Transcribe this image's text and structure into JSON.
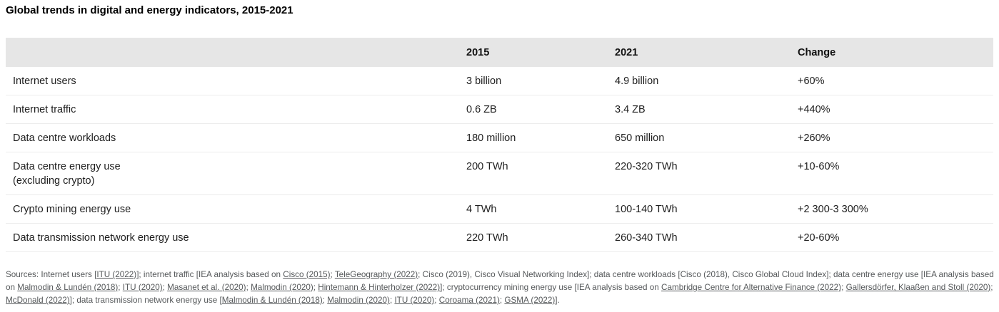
{
  "title": "Global trends in digital and energy indicators, 2015-2021",
  "colors": {
    "header_bg": "#e6e6e6",
    "row_border": "#ececec",
    "text": "#1e1e1e",
    "footnote": "#55585a"
  },
  "table": {
    "columns": [
      "",
      "2015",
      "2021",
      "Change"
    ],
    "rows": [
      {
        "label": "Internet users",
        "v2015": "3 billion",
        "v2021": "4.9 billion",
        "change": "+60%"
      },
      {
        "label": "Internet traffic",
        "v2015": "0.6 ZB",
        "v2021": "3.4 ZB",
        "change": "+440%"
      },
      {
        "label": "Data centre workloads",
        "v2015": "180 million",
        "v2021": "650 million",
        "change": "+260%"
      },
      {
        "label": "Data centre energy use\n(excluding crypto)",
        "v2015": "200 TWh",
        "v2021": "220-320 TWh",
        "change": "+10-60%"
      },
      {
        "label": "Crypto mining energy use",
        "v2015": "4 TWh",
        "v2021": "100-140 TWh",
        "change": "+2 300-3 300%"
      },
      {
        "label": "Data transmission network energy use",
        "v2015": "220 TWh",
        "v2021": "260-340 TWh",
        "change": "+20-60%"
      }
    ]
  },
  "chart_data": {
    "type": "table",
    "title": "Global trends in digital and energy indicators, 2015-2021",
    "columns": [
      "",
      "2015",
      "2021",
      "Change"
    ],
    "rows": [
      [
        "Internet users",
        "3 billion",
        "4.9 billion",
        "+60%"
      ],
      [
        "Internet traffic",
        "0.6 ZB",
        "3.4 ZB",
        "+440%"
      ],
      [
        "Data centre workloads",
        "180 million",
        "650 million",
        "+260%"
      ],
      [
        "Data centre energy use (excluding crypto)",
        "200 TWh",
        "220-320 TWh",
        "+10-60%"
      ],
      [
        "Crypto mining energy use",
        "4 TWh",
        "100-140 TWh",
        "+2 300-3 300%"
      ],
      [
        "Data transmission network energy use",
        "220 TWh",
        "260-340 TWh",
        "+20-60%"
      ]
    ]
  },
  "footnote": {
    "segments": [
      {
        "text": "Sources: Internet users [",
        "link": false
      },
      {
        "text": "ITU (2022)",
        "link": true
      },
      {
        "text": "]; internet traffic [IEA analysis based on ",
        "link": false
      },
      {
        "text": "Cisco (2015)",
        "link": true
      },
      {
        "text": "; ",
        "link": false
      },
      {
        "text": "TeleGeography (2022)",
        "link": true
      },
      {
        "text": "; Cisco (2019), Cisco Visual Networking Index]; data centre workloads [Cisco (2018), Cisco Global Cloud Index]; data centre energy use [IEA analysis based on ",
        "link": false
      },
      {
        "text": "Malmodin & Lundén (2018)",
        "link": true
      },
      {
        "text": "; ",
        "link": false
      },
      {
        "text": "ITU (2020)",
        "link": true
      },
      {
        "text": "; ",
        "link": false
      },
      {
        "text": "Masanet et al. (2020)",
        "link": true
      },
      {
        "text": "; ",
        "link": false
      },
      {
        "text": "Malmodin (2020)",
        "link": true
      },
      {
        "text": "; ",
        "link": false
      },
      {
        "text": "Hintemann & Hinterholzer (2022)",
        "link": true
      },
      {
        "text": "]; cryptocurrency mining energy use [IEA analysis based on ",
        "link": false
      },
      {
        "text": "Cambridge Centre for Alternative Finance (2022)",
        "link": true
      },
      {
        "text": "; ",
        "link": false
      },
      {
        "text": "Gallersdörfer, Klaaßen and Stoll (2020)",
        "link": true
      },
      {
        "text": "; ",
        "link": false
      },
      {
        "text": "McDonald (2022)",
        "link": true
      },
      {
        "text": "]; data transmission network energy use [",
        "link": false
      },
      {
        "text": "Malmodin & Lundén (2018)",
        "link": true
      },
      {
        "text": "; ",
        "link": false
      },
      {
        "text": "Malmodin (2020)",
        "link": true
      },
      {
        "text": "; ",
        "link": false
      },
      {
        "text": "ITU (2020)",
        "link": true
      },
      {
        "text": "; ",
        "link": false
      },
      {
        "text": "Coroama (2021)",
        "link": true
      },
      {
        "text": "; ",
        "link": false
      },
      {
        "text": "GSMA (2022)",
        "link": true
      },
      {
        "text": "].",
        "link": false
      }
    ]
  }
}
